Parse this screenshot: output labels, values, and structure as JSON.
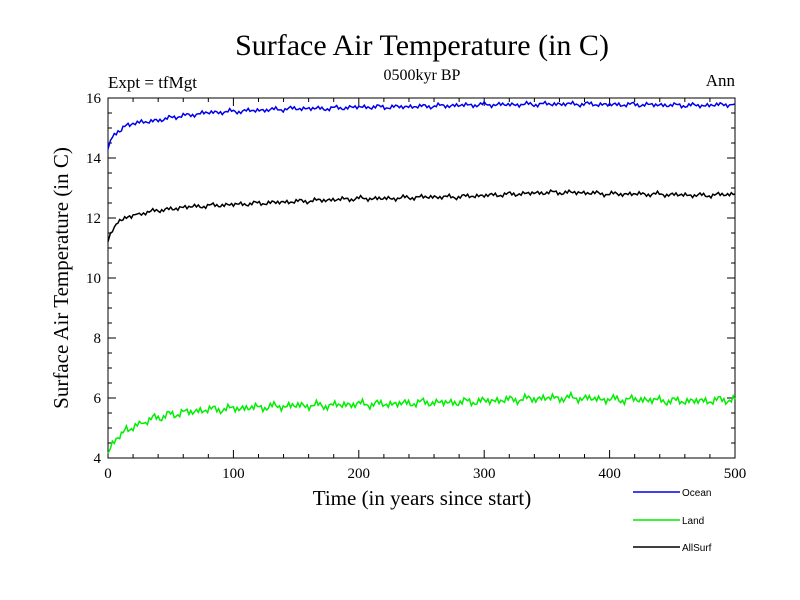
{
  "chart_data": {
    "type": "line",
    "title": "Surface Air Temperature (in C)",
    "subtitle_left": "Expt = tfMgt",
    "subtitle_center": "0500kyr BP",
    "subtitle_right": "Ann",
    "xlabel": "Time (in years since start)",
    "ylabel": "Surface Air Temperature (in C)",
    "xlim": [
      0,
      500
    ],
    "ylim": [
      4,
      16
    ],
    "x_ticks": [
      0,
      100,
      200,
      300,
      400,
      500
    ],
    "y_ticks": [
      4,
      6,
      8,
      10,
      12,
      14,
      16
    ],
    "grid": false,
    "legend_position": "bottom-right",
    "series": [
      {
        "name": "Ocean",
        "color": "#0000ee",
        "x": [
          0,
          2,
          5,
          8,
          12,
          16,
          20,
          25,
          30,
          40,
          50,
          60,
          75,
          100,
          125,
          150,
          175,
          200,
          225,
          250,
          275,
          300,
          325,
          350,
          375,
          400,
          425,
          450,
          475,
          500
        ],
        "values": [
          14.3,
          14.55,
          14.75,
          14.9,
          15.0,
          15.1,
          15.15,
          15.2,
          15.2,
          15.25,
          15.35,
          15.4,
          15.5,
          15.55,
          15.6,
          15.65,
          15.65,
          15.7,
          15.7,
          15.72,
          15.75,
          15.78,
          15.78,
          15.8,
          15.8,
          15.78,
          15.78,
          15.76,
          15.75,
          15.8
        ]
      },
      {
        "name": "Land",
        "color": "#00ee00",
        "x": [
          0,
          2,
          5,
          8,
          12,
          16,
          20,
          25,
          30,
          40,
          50,
          60,
          75,
          100,
          125,
          150,
          175,
          200,
          225,
          250,
          275,
          300,
          325,
          350,
          375,
          400,
          425,
          450,
          475,
          500
        ],
        "values": [
          4.0,
          4.3,
          4.55,
          4.7,
          4.85,
          4.95,
          5.05,
          5.15,
          5.25,
          5.35,
          5.45,
          5.5,
          5.6,
          5.65,
          5.7,
          5.75,
          5.75,
          5.8,
          5.8,
          5.85,
          5.85,
          5.9,
          5.95,
          6.0,
          6.0,
          5.95,
          5.95,
          5.9,
          5.9,
          5.95
        ]
      },
      {
        "name": "AllSurf",
        "color": "#000000",
        "x": [
          0,
          2,
          5,
          8,
          12,
          16,
          20,
          25,
          30,
          40,
          50,
          60,
          75,
          100,
          125,
          150,
          175,
          200,
          225,
          250,
          275,
          300,
          325,
          350,
          375,
          400,
          425,
          450,
          475,
          500
        ],
        "values": [
          11.2,
          11.45,
          11.7,
          11.85,
          11.95,
          12.05,
          12.1,
          12.15,
          12.2,
          12.25,
          12.3,
          12.35,
          12.4,
          12.45,
          12.5,
          12.55,
          12.6,
          12.65,
          12.65,
          12.7,
          12.7,
          12.75,
          12.8,
          12.85,
          12.85,
          12.8,
          12.8,
          12.78,
          12.75,
          12.8
        ]
      }
    ]
  }
}
